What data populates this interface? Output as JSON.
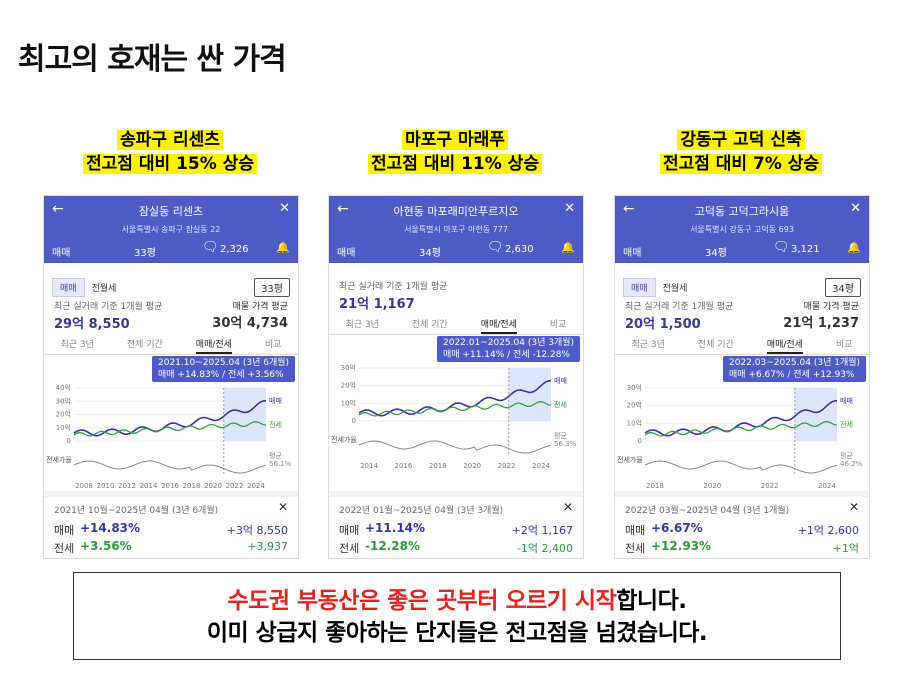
{
  "title": "최고의 호재는 싼 가격",
  "panels": [
    {
      "heading": [
        "송파구 리센츠",
        "전고점 대비 15% 상승"
      ],
      "app": {
        "complex": "잠실동 리센츠",
        "address": "서울특별시 송파구 잠실동 22",
        "deal": "매매",
        "size": "33평",
        "comments": "2,326",
        "tabs": [
          "매매",
          "전월세"
        ],
        "size_select": "33평",
        "recent_label": "최근 실거래 기준 1개월 평균",
        "recent_price": "29억 8,550",
        "ask_label": "매물 가격 평균",
        "ask_price": "30억 4,734",
        "period_tabs": [
          "최근 3년",
          "전체 기간",
          "매매/전세",
          "비교"
        ],
        "tooltip": [
          "2021.10~2025.04 (3년 6개월)",
          "매매 +14.83%  /  전세 +3.56%"
        ],
        "yticks": [
          "40억",
          "30억",
          "20억",
          "10억",
          "0"
        ],
        "xticks": [
          "2008",
          "2010",
          "2012",
          "2014",
          "2016",
          "2018",
          "2020",
          "2022",
          "2024"
        ],
        "series_labels": [
          "매매",
          "전세"
        ],
        "ratio_label": "전세가율",
        "ratio_avg": [
          "평균",
          "56.1%"
        ],
        "summary_period": "2021년 10월~2025년 04월 (3년 6개월)",
        "rows": [
          {
            "label": "매매",
            "pct": "+14.83%",
            "amount": "+3억 8,550"
          },
          {
            "label": "전세",
            "pct": "+3.56%",
            "amount": "+3,937"
          }
        ]
      }
    },
    {
      "heading": [
        "마포구 마래푸",
        "전고점 대비 11% 상승"
      ],
      "app": {
        "complex": "아현동 마포래미안푸르지오",
        "address": "서울특별시 마포구 아현동 777",
        "deal": "매매",
        "size": "34평",
        "comments": "2,630",
        "recent_label": "최근 실거래 기준 1개월 평균",
        "recent_price": "21억 1,167",
        "period_tabs": [
          "최근 3년",
          "전체 기간",
          "매매/전세",
          "비교"
        ],
        "tooltip": [
          "2022.01~2025.04 (3년 3개월)",
          "매매 +11.14%  /  전세 -12.28%"
        ],
        "yticks": [
          "30억",
          "20억",
          "10억",
          "0"
        ],
        "xticks": [
          "2014",
          "2016",
          "2018",
          "2020",
          "2022",
          "2024"
        ],
        "series_labels": [
          "매매",
          "전세"
        ],
        "ratio_label": "전세가율",
        "ratio_avg": [
          "평균",
          "56.3%"
        ],
        "summary_period": "2022년 01월~2025년 04월 (3년 3개월)",
        "rows": [
          {
            "label": "매매",
            "pct": "+11.14%",
            "amount": "+2억 1,167"
          },
          {
            "label": "전세",
            "pct": "-12.28%",
            "amount": "-1억 2,400"
          }
        ]
      }
    },
    {
      "heading": [
        "강동구 고덕 신축",
        "전고점 대비 7% 상승"
      ],
      "app": {
        "complex": "고덕동 고덕그라시움",
        "address": "서울특별시 강동구 고덕동 693",
        "deal": "매매",
        "size": "34평",
        "comments": "3,121",
        "tabs": [
          "매매",
          "전월세"
        ],
        "size_select": "34평",
        "recent_label": "최근 실거래 기준 1개월 평균",
        "recent_price": "20억 1,500",
        "ask_label": "매물 가격 평균",
        "ask_price": "21억 1,237",
        "period_tabs": [
          "최근 3년",
          "전체 기간",
          "매매/전세",
          "비교"
        ],
        "tooltip": [
          "2022.03~2025.04 (3년 1개월)",
          "매매 +6.67%  /  전세 +12.93%"
        ],
        "yticks": [
          "30억",
          "20억",
          "10억",
          "0"
        ],
        "xticks": [
          "2018",
          "2020",
          "2022",
          "2024"
        ],
        "series_labels": [
          "매매",
          "전세"
        ],
        "ratio_label": "전세가율",
        "ratio_avg": [
          "평균",
          "46.2%"
        ],
        "summary_period": "2022년 03월~2025년 04월 (3년 1개월)",
        "rows": [
          {
            "label": "매매",
            "pct": "+6.67%",
            "amount": "+1억 2,600"
          },
          {
            "label": "전세",
            "pct": "+12.93%",
            "amount": "+1억"
          }
        ]
      }
    }
  ],
  "footer": {
    "line1_red": "수도권 부동산은 좋은 곳부터 오르기 시작",
    "line1_black": "합니다.",
    "line2": "이미 상급지 좋아하는 단지들은 전고점을 넘겼습니다."
  }
}
